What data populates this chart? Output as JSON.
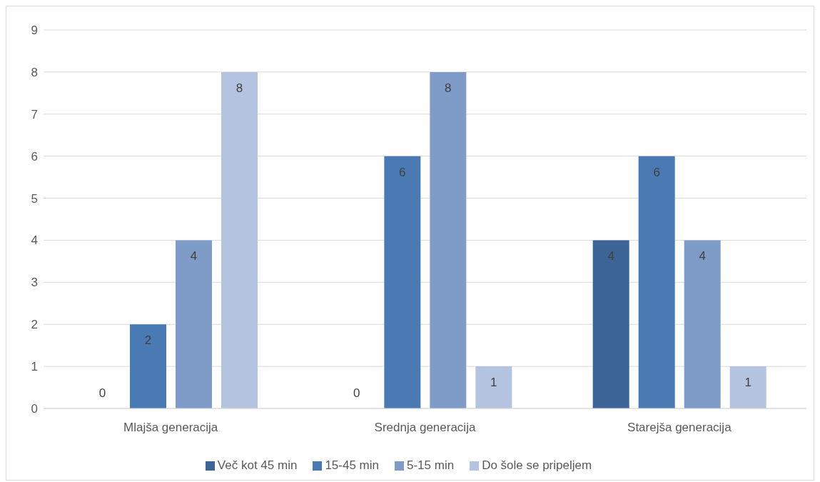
{
  "chart_data": {
    "type": "bar",
    "categories": [
      "Mlajša generacija",
      "Srednja generacija",
      "Starejša generacija"
    ],
    "series": [
      {
        "name": "Več kot 45 min",
        "color": "#3c6496",
        "values": [
          0,
          0,
          4
        ]
      },
      {
        "name": "15-45 min",
        "color": "#4a7ab4",
        "values": [
          2,
          6,
          6
        ]
      },
      {
        "name": "5-15 min",
        "color": "#7f9cc8",
        "values": [
          4,
          8,
          4
        ]
      },
      {
        "name": "Do šole se pripeljem",
        "color": "#b4c4e0",
        "values": [
          8,
          1,
          1
        ]
      }
    ],
    "ylim": [
      0,
      9
    ],
    "yticks": [
      0,
      1,
      2,
      3,
      4,
      5,
      6,
      7,
      8,
      9
    ],
    "grid": "y",
    "legend": "bottom",
    "data_labels": true
  }
}
